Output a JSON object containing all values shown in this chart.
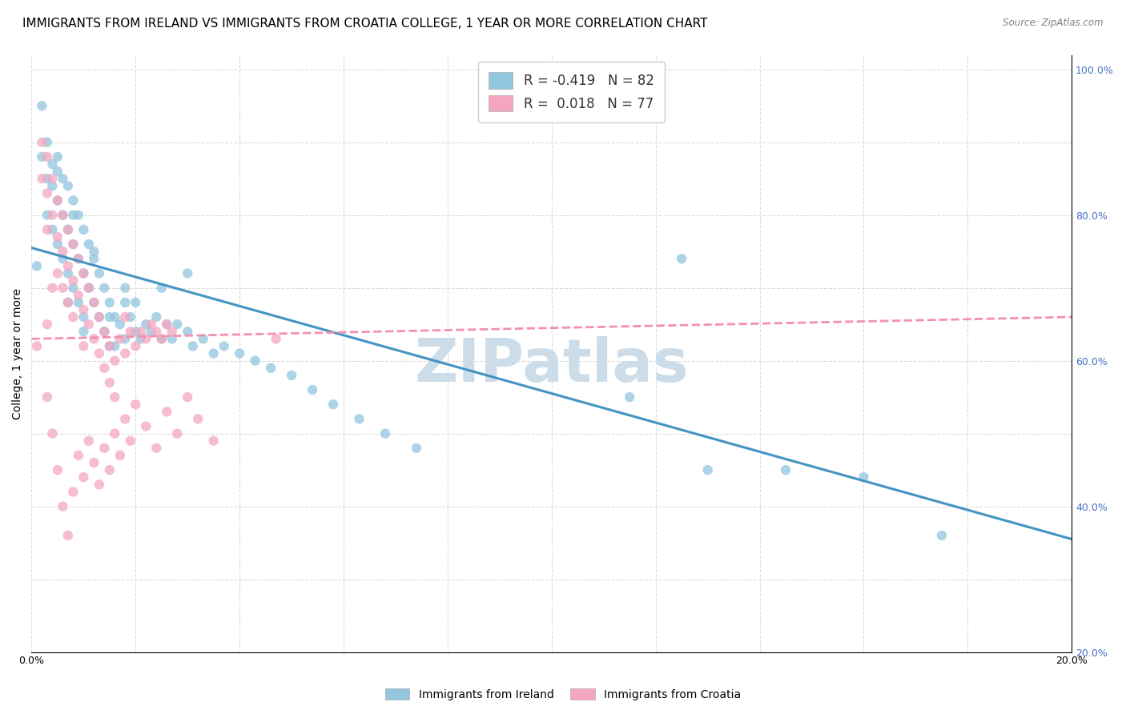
{
  "title": "IMMIGRANTS FROM IRELAND VS IMMIGRANTS FROM CROATIA COLLEGE, 1 YEAR OR MORE CORRELATION CHART",
  "source": "Source: ZipAtlas.com",
  "ylabel": "College, 1 year or more",
  "legend_ireland_label": "Immigrants from Ireland",
  "legend_croatia_label": "Immigrants from Croatia",
  "ireland_R": "-0.419",
  "ireland_N": "82",
  "croatia_R": "0.018",
  "croatia_N": "77",
  "ireland_color": "#92c5de",
  "croatia_color": "#f4a6c0",
  "ireland_line_color": "#4393c3",
  "croatia_line_color": "#f48fb1",
  "background_color": "#ffffff",
  "watermark_text": "ZIPatlas",
  "watermark_color": "#ccdce8",
  "xlim": [
    0.0,
    0.2
  ],
  "ylim": [
    0.2,
    1.02
  ],
  "ireland_scatter_x": [
    0.001,
    0.002,
    0.002,
    0.003,
    0.003,
    0.003,
    0.004,
    0.004,
    0.004,
    0.005,
    0.005,
    0.005,
    0.006,
    0.006,
    0.006,
    0.007,
    0.007,
    0.007,
    0.007,
    0.008,
    0.008,
    0.008,
    0.009,
    0.009,
    0.009,
    0.01,
    0.01,
    0.01,
    0.011,
    0.011,
    0.012,
    0.012,
    0.013,
    0.013,
    0.014,
    0.014,
    0.015,
    0.015,
    0.016,
    0.016,
    0.017,
    0.018,
    0.018,
    0.019,
    0.02,
    0.021,
    0.022,
    0.023,
    0.024,
    0.025,
    0.026,
    0.027,
    0.028,
    0.03,
    0.031,
    0.033,
    0.035,
    0.037,
    0.04,
    0.043,
    0.046,
    0.05,
    0.054,
    0.058,
    0.063,
    0.068,
    0.074,
    0.03,
    0.025,
    0.02,
    0.015,
    0.01,
    0.005,
    0.008,
    0.012,
    0.018,
    0.115,
    0.13,
    0.16,
    0.175,
    0.125,
    0.145
  ],
  "ireland_scatter_y": [
    0.73,
    0.95,
    0.88,
    0.9,
    0.85,
    0.8,
    0.87,
    0.84,
    0.78,
    0.88,
    0.82,
    0.76,
    0.85,
    0.8,
    0.74,
    0.84,
    0.78,
    0.72,
    0.68,
    0.82,
    0.76,
    0.7,
    0.8,
    0.74,
    0.68,
    0.78,
    0.72,
    0.66,
    0.76,
    0.7,
    0.74,
    0.68,
    0.72,
    0.66,
    0.7,
    0.64,
    0.68,
    0.62,
    0.66,
    0.62,
    0.65,
    0.68,
    0.63,
    0.66,
    0.64,
    0.63,
    0.65,
    0.64,
    0.66,
    0.63,
    0.65,
    0.63,
    0.65,
    0.64,
    0.62,
    0.63,
    0.61,
    0.62,
    0.61,
    0.6,
    0.59,
    0.58,
    0.56,
    0.54,
    0.52,
    0.5,
    0.48,
    0.72,
    0.7,
    0.68,
    0.66,
    0.64,
    0.86,
    0.8,
    0.75,
    0.7,
    0.55,
    0.45,
    0.44,
    0.36,
    0.74,
    0.45
  ],
  "croatia_scatter_x": [
    0.001,
    0.002,
    0.002,
    0.003,
    0.003,
    0.003,
    0.004,
    0.004,
    0.005,
    0.005,
    0.005,
    0.006,
    0.006,
    0.006,
    0.007,
    0.007,
    0.007,
    0.008,
    0.008,
    0.008,
    0.009,
    0.009,
    0.01,
    0.01,
    0.01,
    0.011,
    0.011,
    0.012,
    0.012,
    0.013,
    0.013,
    0.014,
    0.014,
    0.015,
    0.015,
    0.016,
    0.016,
    0.017,
    0.018,
    0.018,
    0.019,
    0.02,
    0.021,
    0.022,
    0.023,
    0.024,
    0.025,
    0.026,
    0.027,
    0.003,
    0.004,
    0.005,
    0.006,
    0.007,
    0.008,
    0.009,
    0.01,
    0.011,
    0.012,
    0.013,
    0.014,
    0.015,
    0.016,
    0.017,
    0.018,
    0.019,
    0.02,
    0.022,
    0.024,
    0.026,
    0.028,
    0.03,
    0.032,
    0.035,
    0.003,
    0.004,
    0.047
  ],
  "croatia_scatter_y": [
    0.62,
    0.9,
    0.85,
    0.88,
    0.83,
    0.78,
    0.85,
    0.8,
    0.82,
    0.77,
    0.72,
    0.8,
    0.75,
    0.7,
    0.78,
    0.73,
    0.68,
    0.76,
    0.71,
    0.66,
    0.74,
    0.69,
    0.72,
    0.67,
    0.62,
    0.7,
    0.65,
    0.68,
    0.63,
    0.66,
    0.61,
    0.64,
    0.59,
    0.62,
    0.57,
    0.6,
    0.55,
    0.63,
    0.66,
    0.61,
    0.64,
    0.62,
    0.64,
    0.63,
    0.65,
    0.64,
    0.63,
    0.65,
    0.64,
    0.55,
    0.5,
    0.45,
    0.4,
    0.36,
    0.42,
    0.47,
    0.44,
    0.49,
    0.46,
    0.43,
    0.48,
    0.45,
    0.5,
    0.47,
    0.52,
    0.49,
    0.54,
    0.51,
    0.48,
    0.53,
    0.5,
    0.55,
    0.52,
    0.49,
    0.65,
    0.7,
    0.63
  ],
  "ireland_line_x": [
    0.0,
    0.2
  ],
  "ireland_line_y": [
    0.755,
    0.355
  ],
  "croatia_line_x": [
    0.0,
    0.2
  ],
  "croatia_line_y": [
    0.63,
    0.66
  ],
  "grid_color": "#d8d8d8",
  "title_fontsize": 11,
  "axis_fontsize": 10,
  "tick_fontsize": 9,
  "right_tick_color": "#4472C4"
}
